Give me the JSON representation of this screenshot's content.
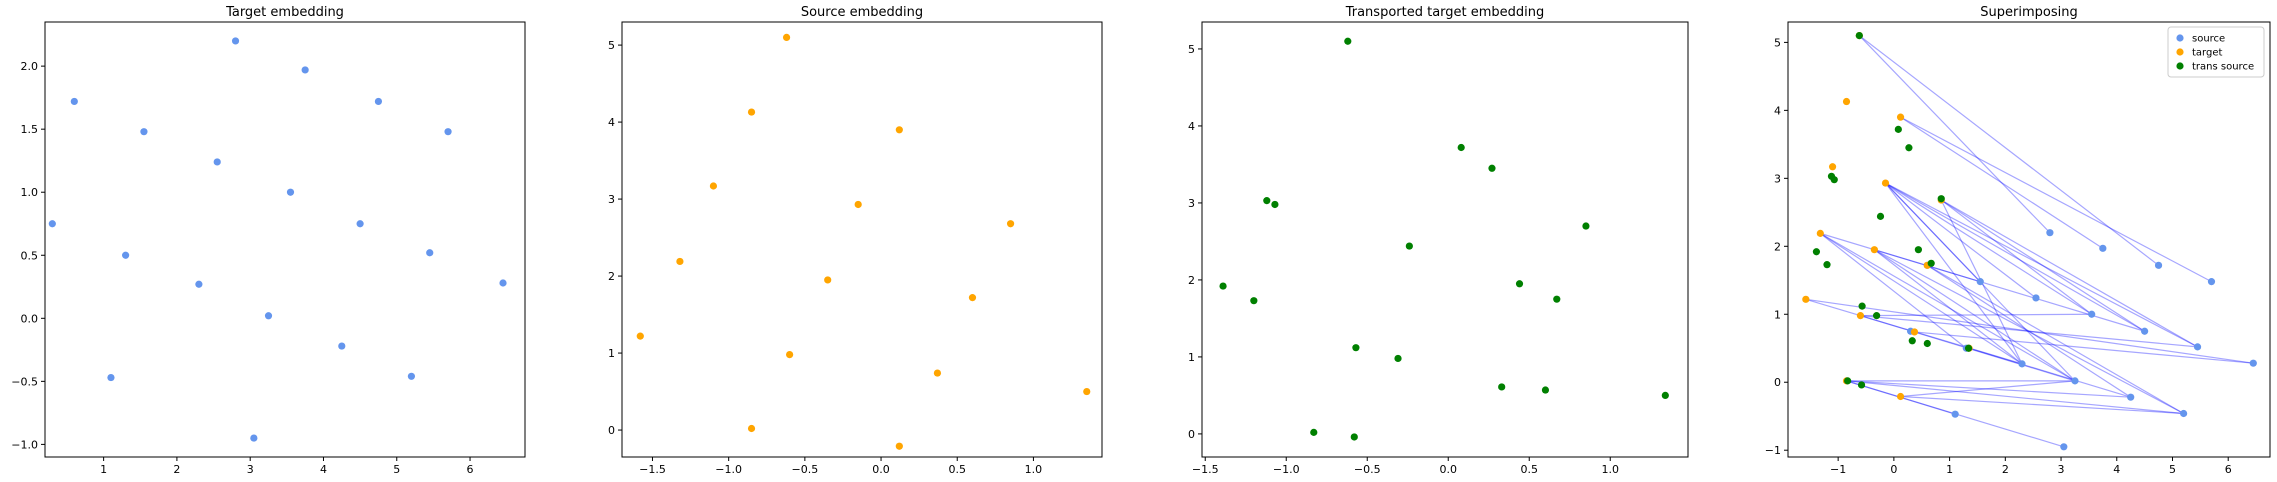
{
  "colors": {
    "source": "#6495ed",
    "target": "#ffa500",
    "trans_source": "#008000",
    "line": "#0000ff"
  },
  "chart_data": [
    {
      "type": "scatter",
      "title": "Target embedding",
      "xlabel": "",
      "ylabel": "",
      "xlim": [
        0.2,
        6.75
      ],
      "ylim": [
        -1.1,
        2.35
      ],
      "xticks": [
        1,
        2,
        3,
        4,
        5,
        6
      ],
      "yticks": [
        -1.0,
        -0.5,
        0.0,
        0.5,
        1.0,
        1.5,
        2.0
      ],
      "ytick_labels": [
        "−1.0",
        "−0.5",
        "0.0",
        "0.5",
        "1.0",
        "1.5",
        "2.0"
      ],
      "series": [
        {
          "color_key": "source",
          "points": [
            [
              2.8,
              2.2
            ],
            [
              0.6,
              1.72
            ],
            [
              3.75,
              1.97
            ],
            [
              1.55,
              1.48
            ],
            [
              4.75,
              1.72
            ],
            [
              5.7,
              1.48
            ],
            [
              2.55,
              1.24
            ],
            [
              3.55,
              1.0
            ],
            [
              0.3,
              0.75
            ],
            [
              4.5,
              0.75
            ],
            [
              1.3,
              0.5
            ],
            [
              5.45,
              0.52
            ],
            [
              2.3,
              0.27
            ],
            [
              6.45,
              0.28
            ],
            [
              3.25,
              0.02
            ],
            [
              4.25,
              -0.22
            ],
            [
              1.1,
              -0.47
            ],
            [
              5.2,
              -0.46
            ],
            [
              3.05,
              -0.95
            ]
          ]
        }
      ],
      "grid": false
    },
    {
      "type": "scatter",
      "title": "Source embedding",
      "xlabel": "",
      "ylabel": "",
      "xlim": [
        -1.7,
        1.45
      ],
      "ylim": [
        -0.35,
        5.3
      ],
      "xticks": [
        -1.5,
        -1.0,
        -0.5,
        0.0,
        0.5,
        1.0
      ],
      "xtick_labels": [
        "−1.5",
        "−1.0",
        "−0.5",
        "0.0",
        "0.5",
        "1.0"
      ],
      "yticks": [
        0,
        1,
        2,
        3,
        4,
        5
      ],
      "series": [
        {
          "color_key": "target",
          "points": [
            [
              -0.62,
              5.1
            ],
            [
              -0.85,
              4.13
            ],
            [
              0.12,
              3.9
            ],
            [
              -1.1,
              3.17
            ],
            [
              -0.15,
              2.93
            ],
            [
              0.85,
              2.68
            ],
            [
              -1.32,
              2.19
            ],
            [
              -0.35,
              1.95
            ],
            [
              0.6,
              1.72
            ],
            [
              -1.58,
              1.22
            ],
            [
              -0.6,
              0.98
            ],
            [
              0.37,
              0.74
            ],
            [
              1.35,
              0.5
            ],
            [
              -0.85,
              0.02
            ],
            [
              0.12,
              -0.21
            ]
          ]
        }
      ],
      "grid": false
    },
    {
      "type": "scatter",
      "title": "Transported target embedding",
      "xlabel": "",
      "ylabel": "",
      "xlim": [
        -1.52,
        1.48
      ],
      "ylim": [
        -0.3,
        5.35
      ],
      "xticks": [
        -1.5,
        -1.0,
        -0.5,
        0.0,
        0.5,
        1.0
      ],
      "xtick_labels": [
        "−1.5",
        "−1.0",
        "−0.5",
        "0.0",
        "0.5",
        "1.0"
      ],
      "yticks": [
        0,
        1,
        2,
        3,
        4,
        5
      ],
      "series": [
        {
          "color_key": "trans_source",
          "points": [
            [
              -0.62,
              5.1
            ],
            [
              0.08,
              3.72
            ],
            [
              0.27,
              3.45
            ],
            [
              -1.12,
              3.03
            ],
            [
              -1.07,
              2.98
            ],
            [
              0.85,
              2.7
            ],
            [
              -0.24,
              2.44
            ],
            [
              0.44,
              1.95
            ],
            [
              -1.39,
              1.92
            ],
            [
              -1.2,
              1.73
            ],
            [
              0.67,
              1.75
            ],
            [
              -0.57,
              1.12
            ],
            [
              -0.31,
              0.98
            ],
            [
              0.33,
              0.61
            ],
            [
              0.6,
              0.57
            ],
            [
              1.34,
              0.5
            ],
            [
              -0.83,
              0.02
            ],
            [
              -0.58,
              -0.04
            ]
          ]
        }
      ],
      "grid": false
    },
    {
      "type": "scatter",
      "title": "Superimposing",
      "xlabel": "",
      "ylabel": "",
      "xlim": [
        -1.9,
        6.75
      ],
      "ylim": [
        -1.1,
        5.3
      ],
      "xticks": [
        -1,
        0,
        1,
        2,
        3,
        4,
        5,
        6
      ],
      "xtick_labels": [
        "−1",
        "0",
        "1",
        "2",
        "3",
        "4",
        "5",
        "6"
      ],
      "yticks": [
        -1,
        0,
        1,
        2,
        3,
        4,
        5
      ],
      "ytick_labels": [
        "−1",
        "0",
        "1",
        "2",
        "3",
        "4",
        "5"
      ],
      "legend": {
        "placement": "top-right",
        "entries": [
          {
            "label": "source",
            "color_key": "source"
          },
          {
            "label": "target",
            "color_key": "target"
          },
          {
            "label": "trans source",
            "color_key": "trans_source"
          }
        ]
      },
      "series": [
        {
          "name": "source",
          "color_key": "source",
          "points": [
            [
              2.8,
              2.2
            ],
            [
              0.6,
              1.72
            ],
            [
              3.75,
              1.97
            ],
            [
              1.55,
              1.48
            ],
            [
              4.75,
              1.72
            ],
            [
              5.7,
              1.48
            ],
            [
              2.55,
              1.24
            ],
            [
              3.55,
              1.0
            ],
            [
              0.3,
              0.75
            ],
            [
              4.5,
              0.75
            ],
            [
              1.3,
              0.5
            ],
            [
              5.45,
              0.52
            ],
            [
              2.3,
              0.27
            ],
            [
              6.45,
              0.28
            ],
            [
              3.25,
              0.02
            ],
            [
              4.25,
              -0.22
            ],
            [
              1.1,
              -0.47
            ],
            [
              5.2,
              -0.46
            ],
            [
              3.05,
              -0.95
            ]
          ]
        },
        {
          "name": "target",
          "color_key": "target",
          "points": [
            [
              -0.62,
              5.1
            ],
            [
              -0.85,
              4.13
            ],
            [
              0.12,
              3.9
            ],
            [
              -1.1,
              3.17
            ],
            [
              -0.15,
              2.93
            ],
            [
              0.85,
              2.68
            ],
            [
              -1.32,
              2.19
            ],
            [
              -0.35,
              1.95
            ],
            [
              0.6,
              1.72
            ],
            [
              -1.58,
              1.22
            ],
            [
              -0.6,
              0.98
            ],
            [
              0.37,
              0.74
            ],
            [
              1.35,
              0.5
            ],
            [
              -0.85,
              0.02
            ],
            [
              0.12,
              -0.21
            ]
          ]
        },
        {
          "name": "trans source",
          "color_key": "trans_source",
          "points": [
            [
              -0.62,
              5.1
            ],
            [
              0.08,
              3.72
            ],
            [
              0.27,
              3.45
            ],
            [
              -1.12,
              3.03
            ],
            [
              -1.07,
              2.98
            ],
            [
              0.85,
              2.7
            ],
            [
              -0.24,
              2.44
            ],
            [
              0.44,
              1.95
            ],
            [
              -1.39,
              1.92
            ],
            [
              -1.2,
              1.73
            ],
            [
              0.67,
              1.75
            ],
            [
              -0.57,
              1.12
            ],
            [
              -0.31,
              0.98
            ],
            [
              0.33,
              0.61
            ],
            [
              0.6,
              0.57
            ],
            [
              1.34,
              0.5
            ],
            [
              -0.83,
              0.02
            ],
            [
              -0.58,
              -0.04
            ]
          ]
        }
      ],
      "links": [
        [
          [
            -0.62,
            5.1
          ],
          [
            2.8,
            2.2
          ]
        ],
        [
          [
            -0.62,
            5.1
          ],
          [
            4.75,
            1.72
          ]
        ],
        [
          [
            0.12,
            3.9
          ],
          [
            3.75,
            1.97
          ]
        ],
        [
          [
            0.12,
            3.9
          ],
          [
            5.7,
            1.48
          ]
        ],
        [
          [
            -0.15,
            2.93
          ],
          [
            1.55,
            1.48
          ]
        ],
        [
          [
            -0.15,
            2.93
          ],
          [
            2.55,
            1.24
          ]
        ],
        [
          [
            -0.15,
            2.93
          ],
          [
            3.55,
            1.0
          ]
        ],
        [
          [
            -0.15,
            2.93
          ],
          [
            4.5,
            0.75
          ]
        ],
        [
          [
            -0.15,
            2.93
          ],
          [
            5.45,
            0.52
          ]
        ],
        [
          [
            -0.15,
            2.93
          ],
          [
            2.3,
            0.27
          ]
        ],
        [
          [
            -0.15,
            2.93
          ],
          [
            3.25,
            0.02
          ]
        ],
        [
          [
            0.85,
            2.68
          ],
          [
            4.5,
            0.75
          ]
        ],
        [
          [
            0.85,
            2.68
          ],
          [
            5.45,
            0.52
          ]
        ],
        [
          [
            0.85,
            2.68
          ],
          [
            3.55,
            1.0
          ]
        ],
        [
          [
            0.85,
            2.68
          ],
          [
            2.3,
            0.27
          ]
        ],
        [
          [
            -1.32,
            2.19
          ],
          [
            2.3,
            0.27
          ]
        ],
        [
          [
            -1.32,
            2.19
          ],
          [
            3.25,
            0.02
          ]
        ],
        [
          [
            -1.32,
            2.19
          ],
          [
            1.55,
            1.48
          ]
        ],
        [
          [
            -1.32,
            2.19
          ],
          [
            1.3,
            0.5
          ]
        ],
        [
          [
            -0.35,
            1.95
          ],
          [
            3.25,
            0.02
          ]
        ],
        [
          [
            -0.35,
            1.95
          ],
          [
            2.3,
            0.27
          ]
        ],
        [
          [
            -0.35,
            1.95
          ],
          [
            4.5,
            0.75
          ]
        ],
        [
          [
            -0.35,
            1.95
          ],
          [
            5.2,
            -0.46
          ]
        ],
        [
          [
            0.6,
            1.72
          ],
          [
            4.25,
            -0.22
          ]
        ],
        [
          [
            0.6,
            1.72
          ],
          [
            5.2,
            -0.46
          ]
        ],
        [
          [
            -1.58,
            1.22
          ],
          [
            2.3,
            0.27
          ]
        ],
        [
          [
            -1.58,
            1.22
          ],
          [
            6.45,
            0.28
          ]
        ],
        [
          [
            -0.6,
            0.98
          ],
          [
            5.45,
            0.52
          ]
        ],
        [
          [
            -0.6,
            0.98
          ],
          [
            3.25,
            0.02
          ]
        ],
        [
          [
            -0.6,
            0.98
          ],
          [
            3.55,
            1.0
          ]
        ],
        [
          [
            0.37,
            0.74
          ],
          [
            6.45,
            0.28
          ]
        ],
        [
          [
            1.35,
            0.5
          ],
          [
            4.25,
            -0.22
          ]
        ],
        [
          [
            -0.85,
            0.02
          ],
          [
            1.1,
            -0.47
          ]
        ],
        [
          [
            -0.85,
            0.02
          ],
          [
            3.05,
            -0.95
          ]
        ],
        [
          [
            -0.85,
            0.02
          ],
          [
            4.25,
            -0.22
          ]
        ],
        [
          [
            -0.85,
            0.02
          ],
          [
            3.25,
            0.02
          ]
        ],
        [
          [
            -0.85,
            0.02
          ],
          [
            5.2,
            -0.46
          ]
        ],
        [
          [
            0.12,
            -0.21
          ],
          [
            5.2,
            -0.46
          ]
        ],
        [
          [
            0.12,
            -0.21
          ],
          [
            3.25,
            0.02
          ]
        ]
      ],
      "grid": false
    }
  ]
}
